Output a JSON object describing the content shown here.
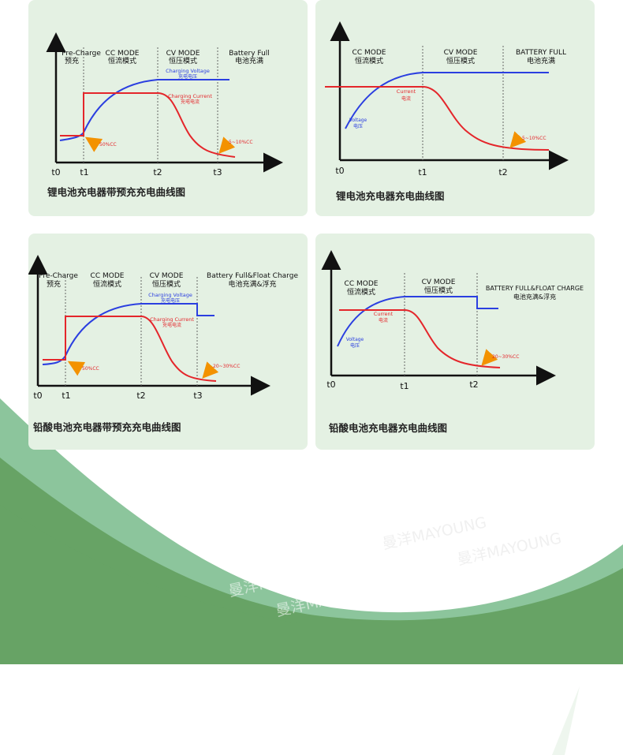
{
  "diagrams": [
    {
      "caption": "锂电池充电器带预充充电曲线图",
      "phases": [
        {
          "en": "Pre-Charge",
          "cn": "预充"
        },
        {
          "en": "CC MODE",
          "cn": "恒流模式"
        },
        {
          "en": "CV MODE",
          "cn": "恒压模式"
        },
        {
          "en": "Battery Full",
          "cn": "电池充满"
        }
      ],
      "voltage_label": {
        "en": "Charging Voltage",
        "cn": "充电电压"
      },
      "current_label": {
        "en": "Charging Current",
        "cn": "充电电流"
      },
      "annotations": [
        "50%CC",
        "5~10%CC"
      ],
      "ticks": [
        "t0",
        "t1",
        "t2",
        "t3"
      ],
      "colors": {
        "voltage": "#2b3fe0",
        "current": "#e4262b",
        "arrow": "#f39200"
      }
    },
    {
      "caption": "锂电池充电器充电曲线图",
      "phases": [
        {
          "en": "CC MODE",
          "cn": "恒流模式"
        },
        {
          "en": "CV MODE",
          "cn": "恒压模式"
        },
        {
          "en": "BATTERY FULL",
          "cn": "电池充满"
        }
      ],
      "voltage_label": {
        "en": "Voltage",
        "cn": "电压"
      },
      "current_label": {
        "en": "Current",
        "cn": "电流"
      },
      "annotations": [
        "5~10%CC"
      ],
      "ticks": [
        "t0",
        "t1",
        "t2"
      ],
      "colors": {
        "voltage": "#2b3fe0",
        "current": "#e4262b",
        "arrow": "#f39200"
      }
    },
    {
      "caption": "铅酸电池充电器带预充充电曲线图",
      "phases": [
        {
          "en": "Pre-Charge",
          "cn": "预充"
        },
        {
          "en": "CC MODE",
          "cn": "恒流模式"
        },
        {
          "en": "CV MODE",
          "cn": "恒压模式"
        },
        {
          "en": "Battery Full&Float Charge",
          "cn": "电池充满&浮充"
        }
      ],
      "voltage_label": {
        "en": "Charging Voltage",
        "cn": "充电电压"
      },
      "current_label": {
        "en": "Charging Current",
        "cn": "充电电流"
      },
      "annotations": [
        "50%CC",
        "20~30%CC"
      ],
      "ticks": [
        "t0",
        "t1",
        "t2",
        "t3"
      ],
      "colors": {
        "voltage": "#2b3fe0",
        "current": "#e4262b",
        "arrow": "#f39200"
      }
    },
    {
      "caption": "铅酸电池充电器充电曲线图",
      "phases": [
        {
          "en": "CC MODE",
          "cn": "恒流模式"
        },
        {
          "en": "CV MODE",
          "cn": "恒压模式"
        },
        {
          "en": "BATTERY FULL&FLOAT CHARGE",
          "cn": "电池充满&浮充"
        }
      ],
      "voltage_label": {
        "en": "Voltage",
        "cn": "电压"
      },
      "current_label": {
        "en": "Current",
        "cn": "电流"
      },
      "annotations": [
        "20~30%CC"
      ],
      "ticks": [
        "t0",
        "t1",
        "t2"
      ],
      "colors": {
        "voltage": "#2b3fe0",
        "current": "#e4262b",
        "arrow": "#f39200"
      }
    }
  ],
  "watermarks": [
    "曼洋MAYOUNG",
    "曼洋MAYOUNG",
    "曼洋MAYOUNG",
    "曼洋MAYOUNG"
  ],
  "colors": {
    "card_bg": "#e4f1e3",
    "wave_light": "#8cc59c",
    "wave_dark": "#67a365"
  }
}
